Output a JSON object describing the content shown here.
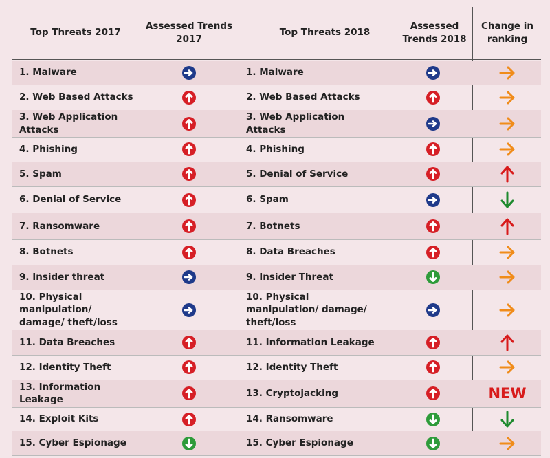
{
  "header": [
    "Top Threats 2017",
    "Assessed Trends 2017",
    "Top Threats 2018",
    "Assessed Trends 2018",
    "Change in ranking"
  ],
  "rows": [
    {
      "threat_2017": "1. Malware",
      "threat_2018": "1. Malware"
    },
    {
      "threat_2017": "2. Web Based Attacks",
      "threat_2018": "2. Web Based Attacks"
    },
    {
      "threat_2017": "3. Web Application Attacks",
      "threat_2018": "3. Web Application Attacks"
    },
    {
      "threat_2017": "4. Phishing",
      "threat_2018": "4. Phishing"
    },
    {
      "threat_2017": "5. Spam",
      "threat_2018": "5. Denial of Service"
    },
    {
      "threat_2017": "6. Denial of Service",
      "threat_2018": "6. Spam"
    },
    {
      "threat_2017": "7. Ransomware",
      "threat_2018": "7. Botnets"
    },
    {
      "threat_2017": "8. Botnets",
      "threat_2018": "8. Data Breaches"
    },
    {
      "threat_2017": "9. Insider threat",
      "threat_2018": "9. Insider Threat"
    },
    {
      "threat_2017": "10. Physical manipulation/ damage/ theft/loss",
      "threat_2018": "10. Physical manipulation/ damage/ theft/loss"
    },
    {
      "threat_2017": "11. Data Breaches",
      "threat_2018": "11. Information Leakage"
    },
    {
      "threat_2017": "12. Identity Theft",
      "threat_2018": "12. Identity Theft"
    },
    {
      "threat_2017": "13. Information Leakage",
      "threat_2018": "13. Cryptojacking",
      "change": "NEW"
    },
    {
      "threat_2017": "14. Exploit Kits",
      "threat_2018": "14. Ransomware"
    },
    {
      "threat_2017": "15. Cyber Espionage",
      "threat_2018": "15. Cyber Espionage"
    }
  ]
}
